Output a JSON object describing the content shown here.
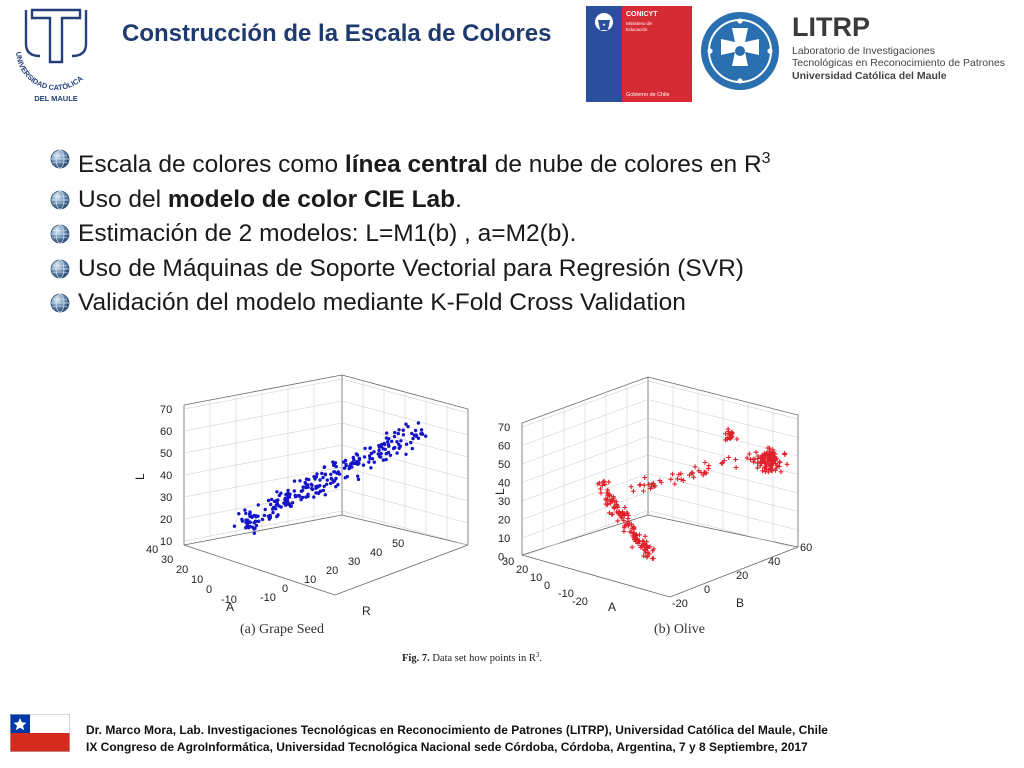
{
  "slide": {
    "title": "Construcción de la Escala de Colores"
  },
  "logos": {
    "ucm": {
      "top_text": "UNIVERSIDAD CATÓLICA",
      "bottom_text": "DEL MAULE",
      "icon": "cross-icon"
    },
    "conicyt": {
      "name": "CONICYT",
      "line2": "Ministerio de",
      "line3": "Educación",
      "footer": "Gobierno de Chile"
    },
    "litrp": {
      "name": "LITRP",
      "line1": "Laboratorio de Investigaciones",
      "line2": "Tecnológicas en Reconocimiento de Patrones",
      "line3": "Universidad Católica del Maule"
    }
  },
  "bullets": [
    {
      "pre": "Escala de colores como ",
      "bold": "línea central",
      "post": " de nube de colores en R",
      "sup": "3"
    },
    {
      "pre": "Uso del ",
      "bold": "modelo de color CIE Lab",
      "post": ".",
      "sup": ""
    },
    {
      "pre": "Estimación de 2 modelos: L=M1(b) , a=M2(b).",
      "bold": "",
      "post": "",
      "sup": ""
    },
    {
      "pre": "Uso de Máquinas de Soporte Vectorial para Regresión (SVR)",
      "bold": "",
      "post": "",
      "sup": ""
    },
    {
      "pre": "Validación del modelo mediante K-Fold Cross Validation",
      "bold": "",
      "post": "",
      "sup": ""
    }
  ],
  "figure": {
    "caption_label": "Fig. 7.",
    "caption_text": "Data set how points in R",
    "caption_sup": "3",
    "caption_end": ".",
    "plots": [
      {
        "subcaption": "(a) Grape Seed",
        "color": "#1414c8",
        "marker": "dot",
        "z_label": "L",
        "a_label": "A",
        "b_label": "R",
        "z_ticks": [
          "70",
          "60",
          "50",
          "40",
          "30",
          "20",
          "10"
        ],
        "a_ticks": [
          "40",
          "30",
          "20",
          "10",
          "0",
          "-10"
        ],
        "b_ticks": [
          "-10",
          "0",
          "10",
          "20",
          "30",
          "40",
          "50"
        ]
      },
      {
        "subcaption": "(b) Olive",
        "color": "#e0202a",
        "marker": "plus",
        "z_label": "L",
        "a_label": "A",
        "b_label": "B",
        "z_ticks": [
          "70",
          "60",
          "50",
          "40",
          "30",
          "20",
          "10",
          "0"
        ],
        "a_ticks": [
          "30",
          "20",
          "10",
          "0",
          "-10",
          "-20"
        ],
        "b_ticks": [
          "-20",
          "0",
          "20",
          "40",
          "60"
        ]
      }
    ]
  },
  "footer": {
    "line1": "Dr. Marco Mora, Lab.  Investigaciones Tecnológicas en Reconocimiento de Patrones (LITRP), Universidad Católica del Maule, Chile",
    "line2": "IX Congreso de AgroInformática, Universidad Tecnológica Nacional sede Córdoba, Córdoba, Argentina, 7 y 8 Septiembre, 2017"
  }
}
